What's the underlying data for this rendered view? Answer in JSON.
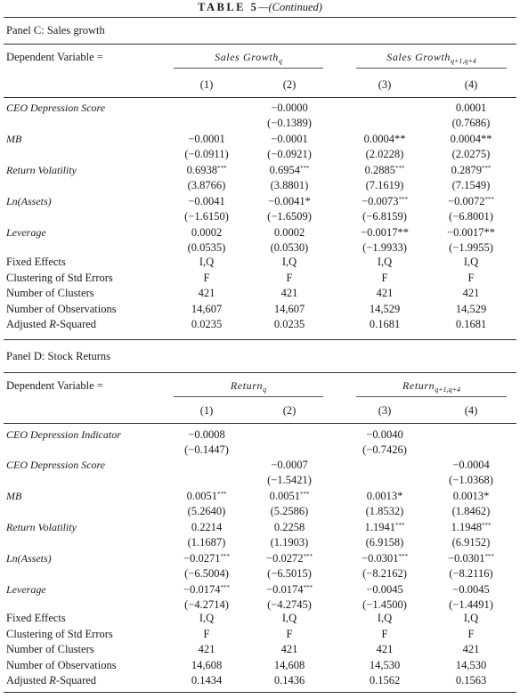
{
  "title": {
    "caps": "TABLE 5",
    "rest": "—(Continued)"
  },
  "panel_c": {
    "title": "Panel C: Sales growth",
    "dv_label": "Dependent Variable =",
    "groups": [
      {
        "base": "Sales Growth",
        "sub": "q"
      },
      {
        "base": "Sales Growth",
        "sub": "q+1,q+4"
      }
    ],
    "col_nums": [
      "(1)",
      "(2)",
      "(3)",
      "(4)"
    ],
    "rows": [
      {
        "label": "CEO Depression Score",
        "italic": true,
        "cells": [
          "",
          "−0.0000",
          "",
          "0.0001"
        ]
      },
      {
        "label": "",
        "italic": false,
        "cells": [
          "",
          "(−0.1389)",
          "",
          "(0.7686)"
        ]
      },
      {
        "label": "MB",
        "italic": true,
        "cells": [
          "−0.0001",
          "−0.0001",
          "0.0004**",
          "0.0004**"
        ]
      },
      {
        "label": "",
        "italic": false,
        "cells": [
          "(−0.0911)",
          "(−0.0921)",
          "(2.0228)",
          "(2.0275)"
        ]
      },
      {
        "label": "Return Volatility",
        "italic": true,
        "cells": [
          "0.6938***",
          "0.6954***",
          "0.2885***",
          "0.2879***"
        ]
      },
      {
        "label": "",
        "italic": false,
        "cells": [
          "(3.8766)",
          "(3.8801)",
          "(7.1619)",
          "(7.1549)"
        ]
      },
      {
        "label": "Ln(Assets)",
        "italic": true,
        "cells": [
          "−0.0041",
          "−0.0041*",
          "−0.0073***",
          "−0.0072***"
        ]
      },
      {
        "label": "",
        "italic": false,
        "cells": [
          "(−1.6150)",
          "(−1.6509)",
          "(−6.8159)",
          "(−6.8001)"
        ]
      },
      {
        "label": "Leverage",
        "italic": true,
        "cells": [
          "0.0002",
          "0.0002",
          "−0.0017**",
          "−0.0017**"
        ]
      },
      {
        "label": "",
        "italic": false,
        "cells": [
          "(0.0535)",
          "(0.0530)",
          "(−1.9933)",
          "(−1.9955)"
        ]
      },
      {
        "label": "Fixed Effects",
        "italic": false,
        "cells": [
          "I,Q",
          "I,Q",
          "I,Q",
          "I,Q"
        ]
      },
      {
        "label": "Clustering of Std Errors",
        "italic": false,
        "cells": [
          "F",
          "F",
          "F",
          "F"
        ]
      },
      {
        "label": "Number of Clusters",
        "italic": false,
        "cells": [
          "421",
          "421",
          "421",
          "421"
        ]
      },
      {
        "label": "Number of Observations",
        "italic": false,
        "cells": [
          "14,607",
          "14,607",
          "14,529",
          "14,529"
        ]
      },
      {
        "label": "Adjusted R-Squared",
        "italic": false,
        "cells": [
          "0.0235",
          "0.0235",
          "0.1681",
          "0.1681"
        ]
      }
    ]
  },
  "panel_d": {
    "title": "Panel D: Stock Returns",
    "dv_label": "Dependent Variable =",
    "groups": [
      {
        "base": "Return",
        "sub": "q"
      },
      {
        "base": "Return",
        "sub": "q+1,q+4"
      }
    ],
    "col_nums": [
      "(1)",
      "(2)",
      "(3)",
      "(4)"
    ],
    "rows": [
      {
        "label": "CEO Depression Indicator",
        "italic": true,
        "cells": [
          "−0.0008",
          "",
          "−0.0040",
          ""
        ]
      },
      {
        "label": "",
        "italic": false,
        "cells": [
          "(−0.1447)",
          "",
          "(−0.7426)",
          ""
        ]
      },
      {
        "label": "CEO Depression Score",
        "italic": true,
        "cells": [
          "",
          "−0.0007",
          "",
          "−0.0004"
        ]
      },
      {
        "label": "",
        "italic": false,
        "cells": [
          "",
          "(−1.5421)",
          "",
          "(−1.0368)"
        ]
      },
      {
        "label": "MB",
        "italic": true,
        "cells": [
          "0.0051***",
          "0.0051***",
          "0.0013*",
          "0.0013*"
        ]
      },
      {
        "label": "",
        "italic": false,
        "cells": [
          "(5.2640)",
          "(5.2586)",
          "(1.8532)",
          "(1.8462)"
        ]
      },
      {
        "label": "Return Volatility",
        "italic": true,
        "cells": [
          "0.2214",
          "0.2258",
          "1.1941***",
          "1.1948***"
        ]
      },
      {
        "label": "",
        "italic": false,
        "cells": [
          "(1.1687)",
          "(1.1903)",
          "(6.9158)",
          "(6.9152)"
        ]
      },
      {
        "label": "Ln(Assets)",
        "italic": true,
        "cells": [
          "−0.0271***",
          "−0.0272***",
          "−0.0301***",
          "−0.0301***"
        ]
      },
      {
        "label": "",
        "italic": false,
        "cells": [
          "(−6.5004)",
          "(−6.5015)",
          "(−8.2162)",
          "(−8.2116)"
        ]
      },
      {
        "label": "Leverage",
        "italic": true,
        "cells": [
          "−0.0174***",
          "−0.0174***",
          "−0.0045",
          "−0.0045"
        ]
      },
      {
        "label": "",
        "italic": false,
        "cells": [
          "(−4.2714)",
          "(−4.2745)",
          "(−1.4500)",
          "(−1.4491)"
        ]
      },
      {
        "label": "Fixed Effects",
        "italic": false,
        "cells": [
          "I,Q",
          "I,Q",
          "I,Q",
          "I,Q"
        ]
      },
      {
        "label": "Clustering of Std Errors",
        "italic": false,
        "cells": [
          "F",
          "F",
          "F",
          "F"
        ]
      },
      {
        "label": "Number of Clusters",
        "italic": false,
        "cells": [
          "421",
          "421",
          "421",
          "421"
        ]
      },
      {
        "label": "Number of Observations",
        "italic": false,
        "cells": [
          "14,608",
          "14,608",
          "14,530",
          "14,530"
        ]
      },
      {
        "label": "Adjusted R-Squared",
        "italic": false,
        "cells": [
          "0.1434",
          "0.1436",
          "0.1562",
          "0.1563"
        ]
      }
    ]
  }
}
